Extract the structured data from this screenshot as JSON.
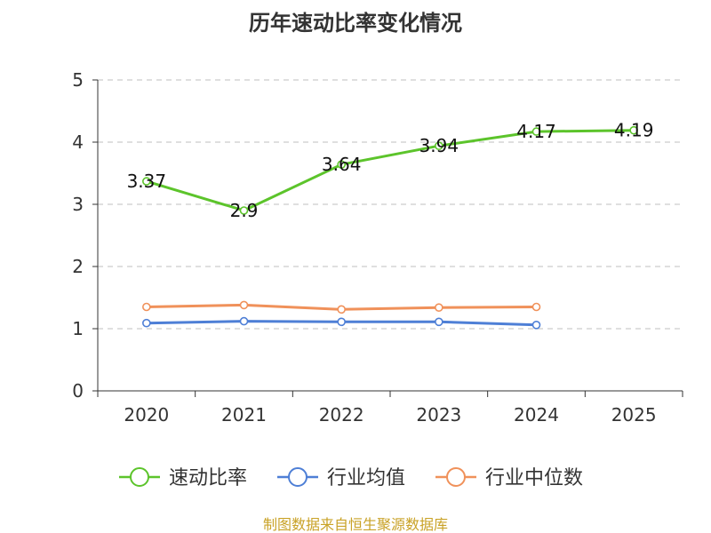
{
  "chart_data": {
    "type": "line",
    "title": "历年速动比率变化情况",
    "categories": [
      "2020",
      "2021",
      "2022",
      "2023",
      "2024",
      "2025"
    ],
    "ylim": [
      0,
      5
    ],
    "yticks": [
      0,
      1,
      2,
      3,
      4,
      5
    ],
    "grid": true,
    "legend_position": "bottom",
    "series": [
      {
        "name": "速动比率",
        "color": "#5cc42b",
        "values": [
          3.37,
          2.9,
          3.64,
          3.94,
          4.17,
          4.19
        ],
        "labels": [
          "3.37",
          "2.9",
          "3.64",
          "3.94",
          "4.17",
          "4.19"
        ]
      },
      {
        "name": "行业均值",
        "color": "#4e7fd6",
        "values": [
          1.09,
          1.12,
          1.11,
          1.11,
          1.06,
          null
        ]
      },
      {
        "name": "行业中位数",
        "color": "#f0915a",
        "values": [
          1.35,
          1.38,
          1.31,
          1.34,
          1.35,
          null
        ]
      }
    ],
    "source": "制图数据来自恒生聚源数据库"
  }
}
